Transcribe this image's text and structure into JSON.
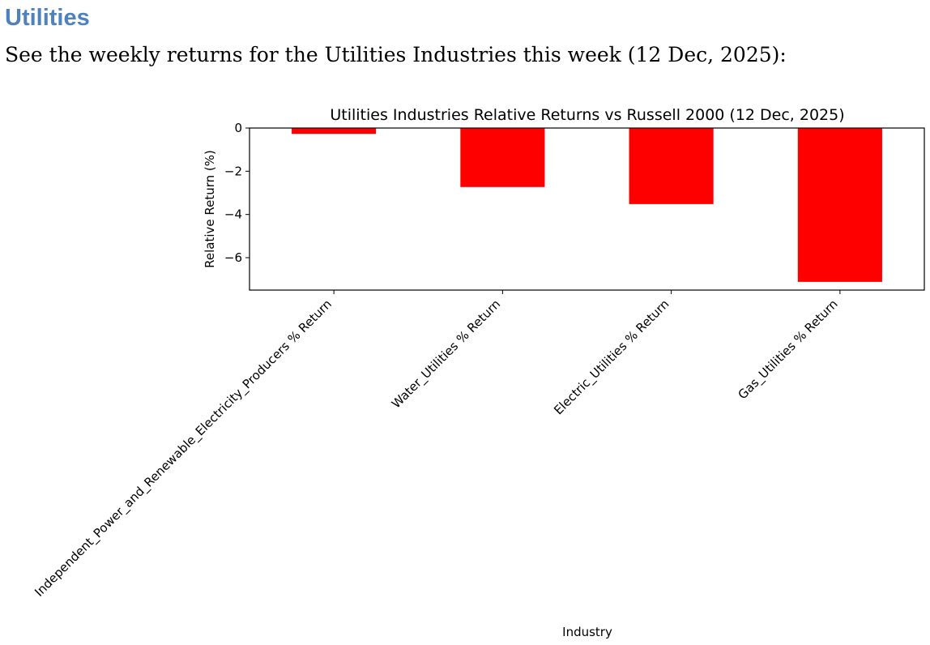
{
  "document": {
    "heading": "Utilities",
    "intro": "See the weekly returns for the Utilities Industries this week (12 Dec, 2025):"
  },
  "chart_data": {
    "type": "bar",
    "title": "Utilities Industries Relative Returns vs Russell 2000 (12 Dec, 2025)",
    "xlabel": "Industry",
    "ylabel": "Relative Return (%)",
    "categories": [
      "Independent_Power_and_Renewable_Electricity_Producers % Return",
      "Water_Utilities % Return",
      "Electric_Utilities % Return",
      "Gas_Utilities % Return"
    ],
    "values": [
      -0.27,
      -2.73,
      -3.52,
      -7.12
    ],
    "ylim": [
      -7.5,
      0
    ],
    "yticks": [
      0,
      -2,
      -4,
      -6
    ],
    "ytick_labels": [
      "0",
      "−2",
      "−4",
      "−6"
    ],
    "bar_color": "#ff0000",
    "grid": false,
    "legend": "none"
  }
}
